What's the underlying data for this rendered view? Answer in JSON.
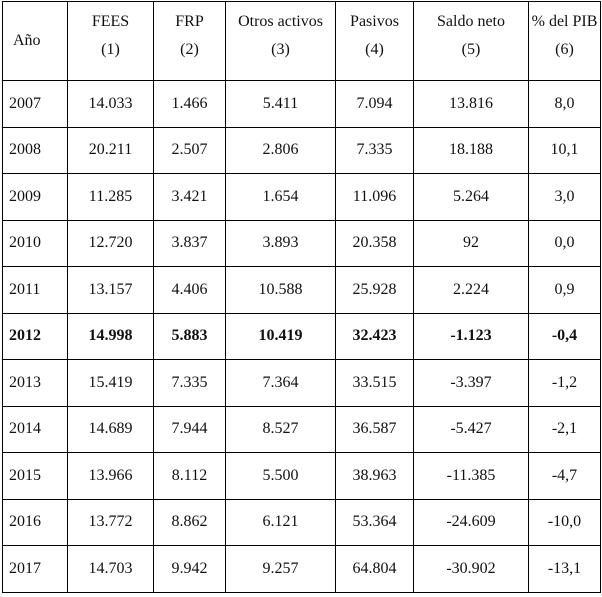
{
  "table": {
    "header": [
      {
        "label": "Año"
      },
      {
        "label": "FEES",
        "number": "(1)"
      },
      {
        "label": "FRP",
        "number": "(2)"
      },
      {
        "label": "Otros activos",
        "number": "(3)"
      },
      {
        "label": "Pasivos",
        "number": "(4)"
      },
      {
        "label": "Saldo neto",
        "number": "(5)"
      },
      {
        "label": "% del PIB",
        "number": "(6)"
      }
    ],
    "rows": [
      [
        "2007",
        "14.033",
        "1.466",
        "5.411",
        "7.094",
        "13.816",
        "8,0"
      ],
      [
        "2008",
        "20.211",
        "2.507",
        "2.806",
        "7.335",
        "18.188",
        "10,1"
      ],
      [
        "2009",
        "11.285",
        "3.421",
        "1.654",
        "11.096",
        "5.264",
        "3,0"
      ],
      [
        "2010",
        "12.720",
        "3.837",
        "3.893",
        "20.358",
        "92",
        "0,0"
      ],
      [
        "2011",
        "13.157",
        "4.406",
        "10.588",
        "25.928",
        "2.224",
        "0,9"
      ],
      [
        "2012",
        "14.998",
        "5.883",
        "10.419",
        "32.423",
        "-1.123",
        "-0,4"
      ],
      [
        "2013",
        "15.419",
        "7.335",
        "7.364",
        "33.515",
        "-3.397",
        "-1,2"
      ],
      [
        "2014",
        "14.689",
        "7.944",
        "8.527",
        "36.587",
        "-5.427",
        "-2,1"
      ],
      [
        "2015",
        "13.966",
        "8.112",
        "5.500",
        "38.963",
        "-11.385",
        "-4,7"
      ],
      [
        "2016",
        "13.772",
        "8.862",
        "6.121",
        "53.364",
        "-24.609",
        "-10,0"
      ],
      [
        "2017",
        "14.703",
        "9.942",
        "9.257",
        "64.804",
        "-30.902",
        "-13,1"
      ]
    ]
  }
}
